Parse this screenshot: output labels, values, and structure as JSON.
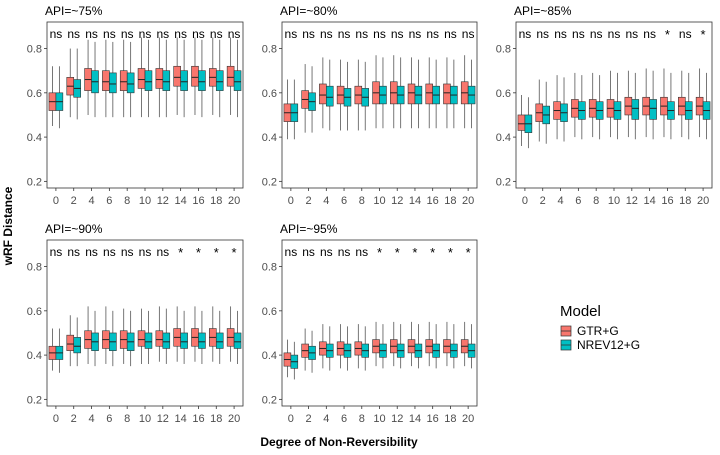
{
  "chart_data": {
    "type": "box",
    "ylabel": "wRF Distance",
    "xlabel": "Degree of Non-Reversibility",
    "x_ticks": [
      "0",
      "2",
      "4",
      "6",
      "8",
      "10",
      "12",
      "14",
      "16",
      "18",
      "20"
    ],
    "y_ticks": [
      "0.2",
      "0.4",
      "0.6",
      "0.8"
    ],
    "ylim": [
      0.17,
      0.92
    ],
    "legend": {
      "title": "Model",
      "position": "right",
      "entries": [
        {
          "name": "GTR+G",
          "color": "#F8766D"
        },
        {
          "name": "NREV12+G",
          "color": "#00BFC4"
        }
      ]
    },
    "panels": [
      {
        "title": "API=~75%",
        "significance": [
          "ns",
          "ns",
          "ns",
          "ns",
          "ns",
          "ns",
          "ns",
          "ns",
          "ns",
          "ns",
          "ns"
        ],
        "series": [
          {
            "name": "GTR+G",
            "median": [
              0.56,
              0.63,
              0.66,
              0.65,
              0.65,
              0.66,
              0.66,
              0.67,
              0.67,
              0.67,
              0.67
            ],
            "q1": [
              0.52,
              0.59,
              0.61,
              0.61,
              0.61,
              0.62,
              0.62,
              0.63,
              0.63,
              0.63,
              0.63
            ],
            "q3": [
              0.6,
              0.67,
              0.71,
              0.7,
              0.7,
              0.71,
              0.71,
              0.72,
              0.72,
              0.71,
              0.72
            ],
            "low": [
              0.45,
              0.49,
              0.5,
              0.49,
              0.49,
              0.49,
              0.49,
              0.5,
              0.5,
              0.5,
              0.5
            ],
            "high": [
              0.72,
              0.8,
              0.84,
              0.84,
              0.84,
              0.85,
              0.85,
              0.85,
              0.85,
              0.85,
              0.85
            ]
          },
          {
            "name": "NREV12+G",
            "median": [
              0.56,
              0.62,
              0.65,
              0.64,
              0.64,
              0.65,
              0.65,
              0.65,
              0.65,
              0.65,
              0.65
            ],
            "q1": [
              0.52,
              0.58,
              0.6,
              0.6,
              0.6,
              0.61,
              0.61,
              0.61,
              0.61,
              0.61,
              0.61
            ],
            "q3": [
              0.6,
              0.66,
              0.7,
              0.69,
              0.69,
              0.7,
              0.7,
              0.7,
              0.7,
              0.7,
              0.7
            ],
            "low": [
              0.44,
              0.48,
              0.49,
              0.49,
              0.49,
              0.49,
              0.49,
              0.49,
              0.49,
              0.49,
              0.49
            ],
            "high": [
              0.72,
              0.8,
              0.83,
              0.83,
              0.83,
              0.84,
              0.84,
              0.84,
              0.84,
              0.84,
              0.84
            ]
          }
        ]
      },
      {
        "title": "API=~80%",
        "significance": [
          "ns",
          "ns",
          "ns",
          "ns",
          "ns",
          "ns",
          "ns",
          "ns",
          "ns",
          "ns",
          "ns"
        ],
        "series": [
          {
            "name": "GTR+G",
            "median": [
              0.51,
              0.57,
              0.59,
              0.59,
              0.59,
              0.6,
              0.6,
              0.6,
              0.6,
              0.6,
              0.6
            ],
            "q1": [
              0.47,
              0.53,
              0.55,
              0.55,
              0.55,
              0.55,
              0.55,
              0.55,
              0.55,
              0.55,
              0.55
            ],
            "q3": [
              0.55,
              0.61,
              0.64,
              0.63,
              0.63,
              0.65,
              0.65,
              0.64,
              0.64,
              0.64,
              0.65
            ],
            "low": [
              0.39,
              0.42,
              0.44,
              0.43,
              0.43,
              0.44,
              0.44,
              0.44,
              0.44,
              0.44,
              0.44
            ],
            "high": [
              0.66,
              0.73,
              0.76,
              0.75,
              0.75,
              0.77,
              0.77,
              0.76,
              0.76,
              0.76,
              0.77
            ]
          },
          {
            "name": "NREV12+G",
            "median": [
              0.51,
              0.56,
              0.58,
              0.58,
              0.58,
              0.59,
              0.59,
              0.59,
              0.59,
              0.59,
              0.59
            ],
            "q1": [
              0.47,
              0.52,
              0.54,
              0.54,
              0.54,
              0.55,
              0.55,
              0.55,
              0.55,
              0.55,
              0.55
            ],
            "q3": [
              0.55,
              0.6,
              0.63,
              0.62,
              0.62,
              0.63,
              0.63,
              0.63,
              0.63,
              0.63,
              0.63
            ],
            "low": [
              0.39,
              0.42,
              0.43,
              0.43,
              0.43,
              0.44,
              0.44,
              0.44,
              0.44,
              0.44,
              0.44
            ],
            "high": [
              0.66,
              0.72,
              0.75,
              0.74,
              0.74,
              0.76,
              0.76,
              0.75,
              0.75,
              0.75,
              0.75
            ]
          }
        ]
      },
      {
        "title": "API=~85%",
        "significance": [
          "ns",
          "ns",
          "ns",
          "ns",
          "ns",
          "ns",
          "ns",
          "ns",
          "*",
          "ns",
          "*"
        ],
        "series": [
          {
            "name": "GTR+G",
            "median": [
              0.46,
              0.51,
              0.52,
              0.53,
              0.53,
              0.53,
              0.54,
              0.54,
              0.54,
              0.54,
              0.54
            ],
            "q1": [
              0.43,
              0.47,
              0.48,
              0.49,
              0.49,
              0.49,
              0.5,
              0.5,
              0.5,
              0.5,
              0.5
            ],
            "q3": [
              0.5,
              0.55,
              0.56,
              0.57,
              0.57,
              0.57,
              0.58,
              0.58,
              0.58,
              0.58,
              0.58
            ],
            "low": [
              0.36,
              0.38,
              0.39,
              0.4,
              0.4,
              0.4,
              0.4,
              0.4,
              0.4,
              0.4,
              0.4
            ],
            "high": [
              0.59,
              0.66,
              0.68,
              0.69,
              0.69,
              0.7,
              0.7,
              0.71,
              0.71,
              0.7,
              0.71
            ]
          },
          {
            "name": "NREV12+G",
            "median": [
              0.46,
              0.5,
              0.51,
              0.52,
              0.52,
              0.52,
              0.53,
              0.53,
              0.52,
              0.52,
              0.52
            ],
            "q1": [
              0.42,
              0.46,
              0.47,
              0.48,
              0.48,
              0.48,
              0.48,
              0.48,
              0.48,
              0.48,
              0.48
            ],
            "q3": [
              0.5,
              0.54,
              0.55,
              0.56,
              0.56,
              0.56,
              0.57,
              0.57,
              0.56,
              0.56,
              0.56
            ],
            "low": [
              0.35,
              0.37,
              0.38,
              0.39,
              0.39,
              0.39,
              0.39,
              0.39,
              0.39,
              0.39,
              0.39
            ],
            "high": [
              0.58,
              0.65,
              0.67,
              0.68,
              0.68,
              0.69,
              0.69,
              0.7,
              0.69,
              0.69,
              0.69
            ]
          }
        ]
      },
      {
        "title": "API=~90%",
        "significance": [
          "ns",
          "ns",
          "ns",
          "ns",
          "ns",
          "ns",
          "ns",
          "*",
          "*",
          "*",
          "*"
        ],
        "series": [
          {
            "name": "GTR+G",
            "median": [
              0.41,
              0.45,
              0.47,
              0.47,
              0.47,
              0.47,
              0.47,
              0.48,
              0.48,
              0.48,
              0.48
            ],
            "q1": [
              0.38,
              0.42,
              0.43,
              0.43,
              0.43,
              0.44,
              0.44,
              0.44,
              0.44,
              0.44,
              0.44
            ],
            "q3": [
              0.44,
              0.49,
              0.51,
              0.51,
              0.51,
              0.51,
              0.51,
              0.52,
              0.52,
              0.52,
              0.52
            ],
            "low": [
              0.33,
              0.35,
              0.36,
              0.36,
              0.36,
              0.36,
              0.37,
              0.37,
              0.37,
              0.37,
              0.37
            ],
            "high": [
              0.52,
              0.58,
              0.62,
              0.62,
              0.61,
              0.61,
              0.62,
              0.62,
              0.62,
              0.62,
              0.62
            ]
          },
          {
            "name": "NREV12+G",
            "median": [
              0.41,
              0.44,
              0.46,
              0.46,
              0.46,
              0.46,
              0.46,
              0.46,
              0.46,
              0.46,
              0.46
            ],
            "q1": [
              0.38,
              0.41,
              0.42,
              0.42,
              0.42,
              0.43,
              0.43,
              0.43,
              0.43,
              0.43,
              0.43
            ],
            "q3": [
              0.44,
              0.48,
              0.5,
              0.5,
              0.5,
              0.5,
              0.5,
              0.5,
              0.5,
              0.5,
              0.5
            ],
            "low": [
              0.32,
              0.35,
              0.35,
              0.35,
              0.35,
              0.36,
              0.36,
              0.36,
              0.36,
              0.36,
              0.36
            ],
            "high": [
              0.52,
              0.57,
              0.6,
              0.6,
              0.6,
              0.6,
              0.61,
              0.6,
              0.6,
              0.6,
              0.6
            ]
          }
        ]
      },
      {
        "title": "API=~95%",
        "significance": [
          "ns",
          "ns",
          "ns",
          "ns",
          "ns",
          "*",
          "*",
          "*",
          "*",
          "*",
          "*"
        ],
        "series": [
          {
            "name": "GTR+G",
            "median": [
              0.38,
              0.42,
              0.43,
              0.43,
              0.43,
              0.44,
              0.44,
              0.44,
              0.44,
              0.44,
              0.44
            ],
            "q1": [
              0.35,
              0.39,
              0.4,
              0.4,
              0.4,
              0.41,
              0.41,
              0.41,
              0.41,
              0.41,
              0.41
            ],
            "q3": [
              0.41,
              0.45,
              0.46,
              0.46,
              0.46,
              0.47,
              0.47,
              0.47,
              0.47,
              0.47,
              0.47
            ],
            "low": [
              0.3,
              0.33,
              0.34,
              0.34,
              0.34,
              0.35,
              0.35,
              0.35,
              0.35,
              0.35,
              0.35
            ],
            "high": [
              0.47,
              0.52,
              0.54,
              0.54,
              0.54,
              0.55,
              0.55,
              0.55,
              0.55,
              0.55,
              0.55
            ]
          },
          {
            "name": "NREV12+G",
            "median": [
              0.37,
              0.41,
              0.42,
              0.42,
              0.42,
              0.42,
              0.42,
              0.42,
              0.42,
              0.42,
              0.42
            ],
            "q1": [
              0.34,
              0.38,
              0.39,
              0.39,
              0.39,
              0.39,
              0.39,
              0.39,
              0.39,
              0.39,
              0.39
            ],
            "q3": [
              0.4,
              0.44,
              0.45,
              0.45,
              0.45,
              0.45,
              0.45,
              0.45,
              0.45,
              0.45,
              0.45
            ],
            "low": [
              0.29,
              0.32,
              0.33,
              0.33,
              0.33,
              0.34,
              0.34,
              0.34,
              0.34,
              0.34,
              0.34
            ],
            "high": [
              0.46,
              0.51,
              0.53,
              0.53,
              0.53,
              0.54,
              0.54,
              0.54,
              0.54,
              0.54,
              0.54
            ]
          }
        ]
      }
    ]
  }
}
